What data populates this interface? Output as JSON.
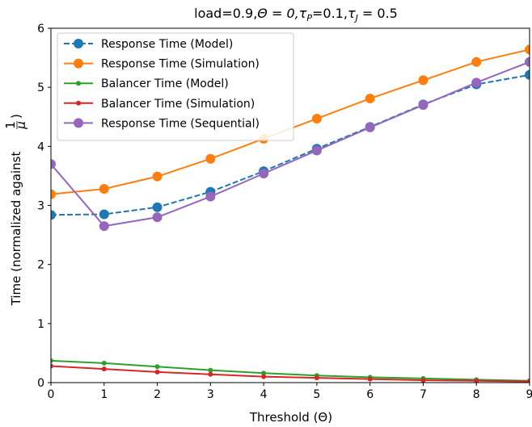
{
  "chart_data": {
    "type": "line",
    "title": "load=0.9,Θ = 0,τ_P=0.1,τ_J = 0.5",
    "title_parts": {
      "a": "load=0.9,",
      "b": "Θ = 0,",
      "c": "τ",
      "c_sub": "P",
      "d": "=0.1,",
      "e": "τ",
      "e_sub": "J",
      "f": " = 0.5"
    },
    "xlabel": "Threshold (Θ)",
    "ylabel": "Time (normalized against",
    "ylabel_frac_num": "1",
    "ylabel_frac_den": "μ",
    "ylabel_close": ")",
    "xlim": [
      0,
      9
    ],
    "ylim": [
      0,
      6
    ],
    "x_ticks": [
      "0",
      "1",
      "2",
      "3",
      "4",
      "5",
      "6",
      "7",
      "8",
      "9"
    ],
    "y_ticks": [
      "0",
      "1",
      "2",
      "3",
      "4",
      "5",
      "6"
    ],
    "x": [
      0,
      1,
      2,
      3,
      4,
      5,
      6,
      7,
      8,
      9
    ],
    "grid": false,
    "legend_position": "upper-left",
    "series": [
      {
        "name": "Response Time (Model)",
        "color": "#1f77b4",
        "dashed": true,
        "marker": "large",
        "values": [
          2.84,
          2.85,
          2.97,
          3.23,
          3.58,
          3.96,
          4.33,
          4.71,
          5.05,
          5.21
        ]
      },
      {
        "name": "Response Time (Simulation)",
        "color": "#ff7f0e",
        "dashed": false,
        "marker": "large",
        "values": [
          3.19,
          3.28,
          3.49,
          3.79,
          4.13,
          4.47,
          4.81,
          5.12,
          5.43,
          5.64
        ]
      },
      {
        "name": "Balancer Time (Model)",
        "color": "#2ca02c",
        "dashed": false,
        "marker": "small",
        "values": [
          0.37,
          0.33,
          0.27,
          0.21,
          0.16,
          0.12,
          0.09,
          0.07,
          0.05,
          0.03
        ]
      },
      {
        "name": "Balancer Time (Simulation)",
        "color": "#d62728",
        "dashed": false,
        "marker": "small",
        "values": [
          0.28,
          0.23,
          0.18,
          0.14,
          0.1,
          0.08,
          0.06,
          0.04,
          0.03,
          0.02
        ]
      },
      {
        "name": "Response Time (Sequential)",
        "color": "#9467bd",
        "dashed": false,
        "marker": "large",
        "values": [
          3.7,
          2.65,
          2.8,
          3.15,
          3.54,
          3.93,
          4.32,
          4.7,
          5.08,
          5.43
        ]
      }
    ]
  }
}
